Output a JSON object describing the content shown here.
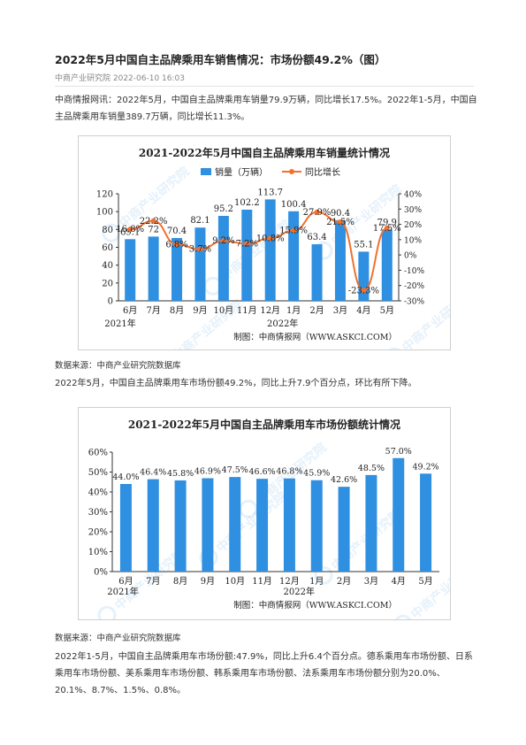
{
  "article": {
    "title": "2022年5月中国自主品牌乘用车销售情况：市场份额49.2%（图）",
    "source_date": "中商产业研究院 2022-06-10 16:03",
    "para1": "中商情报网讯：2022年5月，中国自主品牌乘用车销量79.9万辆，同比增长17.5%。2022年1-5月，中国自主品牌乘用车销量389.7万辆，同比增长11.3%。",
    "data_source_1": "数据来源：中商产业研究院数据库",
    "para2": "2022年5月，中国自主品牌乘用车市场份额49.2%，同比上升7.9个百分点，环比有所下降。",
    "data_source_2": "数据来源：中商产业研究院数据库",
    "para3": "2022年1-5月，中国自主品牌乘用车市场份额:47.9%，同比上升6.4个百分点。德系乘用车市场份额、日系乘用车市场份额、美系乘用车市场份额、韩系乘用车市场份额、法系乘用车市场份额分别为20.0%、20.1%、8.7%、1.5%、0.8%。"
  },
  "colors": {
    "bar": "#2f8fe0",
    "line": "#f2712e"
  },
  "chart_data": [
    {
      "type": "bar",
      "title": "2021-2022年5月中国自主品牌乘用车销量统计情况",
      "categories": [
        "6月",
        "7月",
        "8月",
        "9月",
        "10月",
        "11月",
        "12月",
        "1月",
        "2月",
        "3月",
        "4月",
        "5月"
      ],
      "year_labels": [
        "2021年",
        "2022年"
      ],
      "series": [
        {
          "name": "销量（万辆）",
          "type": "bar",
          "axis": "left",
          "values": [
            69.1,
            72,
            70.4,
            82.1,
            95.2,
            102.2,
            113.7,
            100.4,
            63.4,
            90.4,
            55.1,
            79.9
          ]
        },
        {
          "name": "同比增长",
          "type": "line",
          "axis": "right",
          "values": [
            16.8,
            22.2,
            6.8,
            3.7,
            9.2,
            7.2,
            10.8,
            15.9,
            27.9,
            21.5,
            -23.3,
            17.5
          ],
          "labels": [
            "16.8%",
            "22.2%",
            "6.8%",
            "3.7%",
            "9.2%",
            "7.2%",
            "10.8%",
            "15.9%",
            "27.9%",
            "21.5%",
            "-23.3%",
            "17.5%"
          ]
        }
      ],
      "ylim": [
        0,
        120
      ],
      "yticks": [
        "0",
        "20",
        "40",
        "60",
        "80",
        "100",
        "120"
      ],
      "y2lim": [
        -30,
        40
      ],
      "y2ticks": [
        "-30%",
        "-20%",
        "-10%",
        "0%",
        "10%",
        "20%",
        "30%",
        "40%"
      ],
      "legend": "top",
      "credit": "制图：中商情报网（WWW.ASKCI.COM）",
      "watermark": "中商产业研究院"
    },
    {
      "type": "bar",
      "title": "2021-2022年5月中国自主品牌乘用车市场份额统计情况",
      "categories": [
        "6月",
        "7月",
        "8月",
        "9月",
        "10月",
        "11月",
        "12月",
        "1月",
        "2月",
        "3月",
        "4月",
        "5月"
      ],
      "year_labels": [
        "2021年",
        "2022年"
      ],
      "values": [
        44.0,
        46.4,
        45.8,
        46.9,
        47.5,
        46.6,
        46.8,
        45.9,
        42.6,
        48.5,
        57.0,
        49.2
      ],
      "labels": [
        "44.0%",
        "46.4%",
        "45.8%",
        "46.9%",
        "47.5%",
        "46.6%",
        "46.8%",
        "45.9%",
        "42.6%",
        "48.5%",
        "57.0%",
        "49.2%"
      ],
      "ylim": [
        0,
        60
      ],
      "yticks": [
        "0%",
        "10%",
        "20%",
        "30%",
        "40%",
        "50%",
        "60%"
      ],
      "credit": "制图：中商情报网（WWW.ASKCI.COM）",
      "watermark": "中商产业研究院"
    }
  ]
}
